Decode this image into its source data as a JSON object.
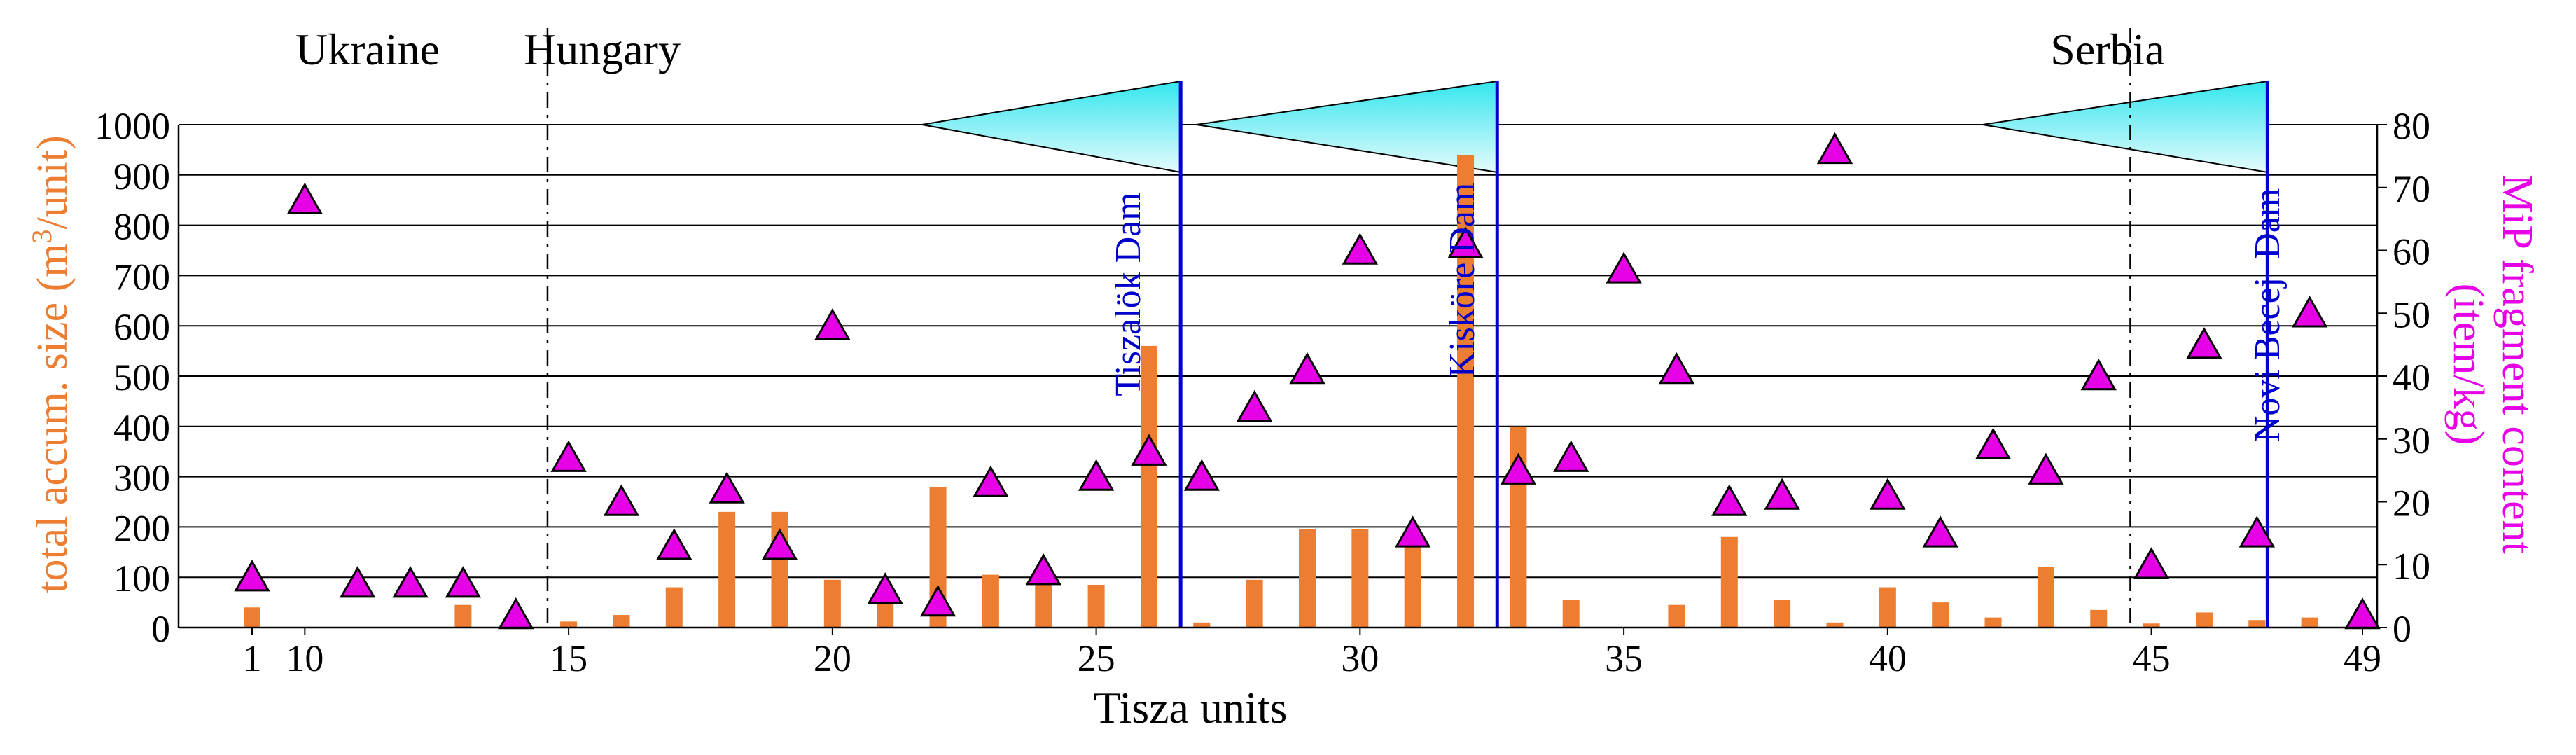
{
  "chart_data": {
    "type": "bar",
    "xlabel": "Tisza units",
    "ylabel_left_parts": {
      "pre": "total accum. size (m",
      "sup": "3",
      "post": "/unit)"
    },
    "ylabel_right_line1": "MiP fragment content",
    "ylabel_right_line2": "(item/kg)",
    "ylim_left": [
      0,
      1000
    ],
    "ylim_right": [
      0,
      80
    ],
    "yticks_left": [
      "0",
      "100",
      "200",
      "300",
      "400",
      "500",
      "600",
      "700",
      "800",
      "900",
      "1000"
    ],
    "yticks_right": [
      "0",
      "10",
      "20",
      "30",
      "40",
      "50",
      "60",
      "70",
      "80"
    ],
    "xticks": [
      "1",
      "10",
      "15",
      "20",
      "25",
      "30",
      "35",
      "40",
      "45",
      "49"
    ],
    "grid": true,
    "countries": [
      "Ukraine",
      "Hungary",
      "Serbia"
    ],
    "dams": [
      "Tiszalök Dam",
      "Kisköre Dam",
      "Novi Becej  Dam"
    ],
    "colors": {
      "bars": "#ed7d31",
      "markers": "#e600e6",
      "marker_edge": "#000000",
      "dams": "#0000cc",
      "reservoir": "#33e6ee",
      "left_axis_label": "#ed7d31",
      "right_axis_label": "#e600e6"
    },
    "categories": [
      "1",
      "10",
      "11",
      "12",
      "13",
      "14",
      "15",
      "16",
      "17",
      "18",
      "19",
      "20",
      "21",
      "22",
      "23",
      "24",
      "25",
      "26",
      "27",
      "28",
      "29",
      "30",
      "31",
      "32",
      "33",
      "34",
      "35",
      "36",
      "37",
      "38",
      "39",
      "40",
      "41",
      "42",
      "43",
      "44",
      "45",
      "46",
      "47",
      "48",
      "49"
    ],
    "bars": [
      40,
      0,
      0,
      0,
      45,
      8,
      12,
      25,
      80,
      230,
      230,
      95,
      50,
      280,
      105,
      95,
      85,
      560,
      10,
      95,
      195,
      195,
      165,
      940,
      400,
      55,
      0,
      45,
      180,
      55,
      10,
      80,
      50,
      20,
      120,
      35,
      8,
      30,
      15,
      20,
      0
    ],
    "mip": [
      8,
      68,
      7,
      7,
      7,
      2,
      27,
      20,
      13,
      22,
      13,
      48,
      6,
      4,
      23,
      9,
      24,
      28,
      24,
      35,
      41,
      60,
      15,
      61,
      25,
      27,
      57,
      41,
      20,
      21,
      76,
      21,
      15,
      29,
      25,
      40,
      10,
      45,
      15,
      50,
      2
    ]
  }
}
